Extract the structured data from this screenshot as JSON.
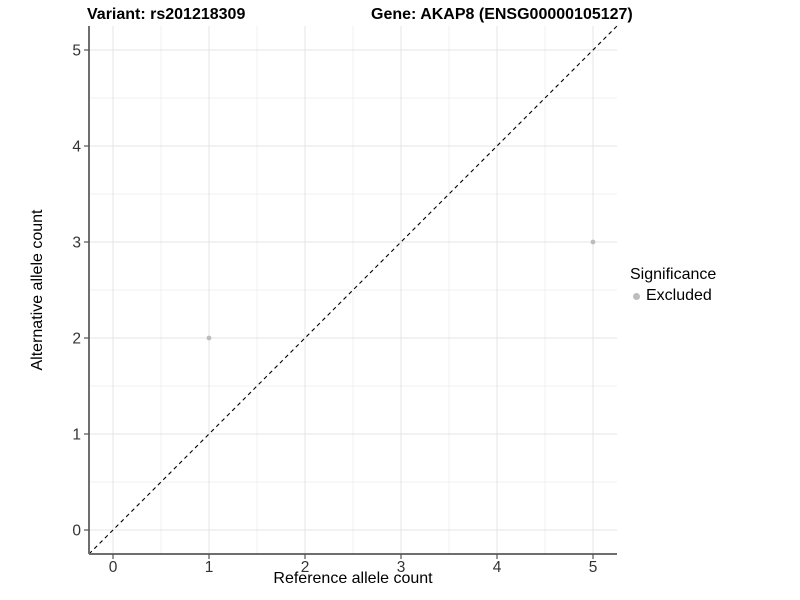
{
  "chart_data": {
    "type": "scatter",
    "title_left": "Variant: rs201218309",
    "title_right": "Gene: AKAP8 (ENSG00000105127)",
    "xlabel": "Reference allele count",
    "ylabel": "Alternative allele count",
    "xlim": [
      -0.25,
      5.25
    ],
    "ylim": [
      -0.25,
      5.25
    ],
    "xticks": [
      0,
      1,
      2,
      3,
      4,
      5
    ],
    "yticks": [
      0,
      1,
      2,
      3,
      4,
      5
    ],
    "minor_ticks": [
      0.5,
      1.5,
      2.5,
      3.5,
      4.5
    ],
    "grid": "major and minor gridlines on white background",
    "identity_line": {
      "style": "dashed",
      "color": "#000000",
      "x1": -0.25,
      "y1": -0.25,
      "x2": 5.25,
      "y2": 5.25
    },
    "series": [
      {
        "name": "Excluded",
        "color": "#bdbdbd",
        "points": [
          {
            "x": 1,
            "y": 2
          },
          {
            "x": 5,
            "y": 3
          }
        ]
      }
    ],
    "legend": {
      "title": "Significance",
      "position": "right",
      "items": [
        {
          "label": "Excluded",
          "color": "#bdbdbd"
        }
      ]
    }
  },
  "colors": {
    "background": "#ffffff",
    "point": "#bdbdbd",
    "grid_major": "#e4e4e4",
    "grid_minor": "#f1f1f1",
    "axis_line": "#6e6e6e",
    "tick_mark": "#555555",
    "tick_text": "#333333",
    "title_text": "#000000"
  }
}
